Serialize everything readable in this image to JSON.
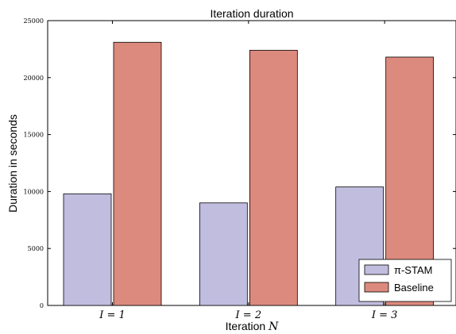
{
  "chart_data": {
    "type": "bar",
    "title": "Iteration duration",
    "xlabel": "Iteration N",
    "ylabel": "Duration in seconds",
    "categories": [
      "I = 1",
      "I = 2",
      "I = 3"
    ],
    "series": [
      {
        "name": "π-STAM",
        "values": [
          9800,
          9000,
          10400
        ],
        "color": "#c0bddf"
      },
      {
        "name": "Baseline",
        "values": [
          23100,
          22400,
          21800
        ],
        "color": "#dc8a7d"
      }
    ],
    "ylim": [
      0,
      25000
    ],
    "yticks": [
      0,
      5000,
      10000,
      15000,
      20000,
      25000
    ],
    "ytick_labels": [
      "0",
      "5000",
      "10000",
      "15000",
      "20000",
      "25000"
    ],
    "grid": false,
    "legend": "bottom-right"
  }
}
